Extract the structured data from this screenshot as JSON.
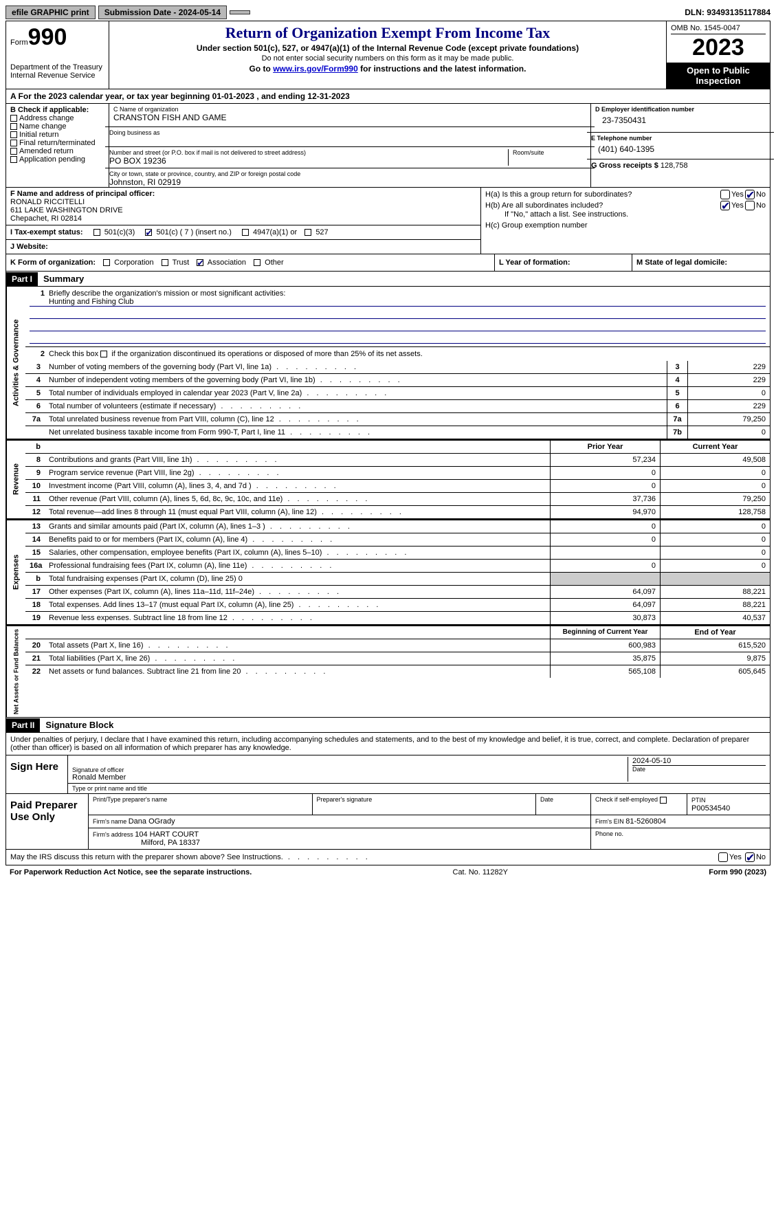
{
  "topbar": {
    "efile_label": "efile GRAPHIC print",
    "submission_label": "Submission Date - 2024-05-14",
    "dln_label": "DLN: 93493135117884"
  },
  "header": {
    "form_label": "Form",
    "form_number": "990",
    "dept": "Department of the Treasury",
    "irs": "Internal Revenue Service",
    "title": "Return of Organization Exempt From Income Tax",
    "subtitle": "Under section 501(c), 527, or 4947(a)(1) of the Internal Revenue Code (except private foundations)",
    "note": "Do not enter social security numbers on this form as it may be made public.",
    "goto_prefix": "Go to ",
    "goto_link": "www.irs.gov/Form990",
    "goto_suffix": " for instructions and the latest information.",
    "omb": "OMB No. 1545-0047",
    "year": "2023",
    "open_public": "Open to Public Inspection"
  },
  "row_a": {
    "prefix": "A For the 2023 calendar year, or tax year beginning ",
    "begin": "01-01-2023",
    "mid": "  , and ending ",
    "end": "12-31-2023"
  },
  "col_b": {
    "label": "B Check if applicable:",
    "items": [
      "Address change",
      "Name change",
      "Initial return",
      "Final return/terminated",
      "Amended return",
      "Application pending"
    ]
  },
  "col_c": {
    "name_label": "C Name of organization",
    "name": "CRANSTON FISH AND GAME",
    "dba_label": "Doing business as",
    "addr_label": "Number and street (or P.O. box if mail is not delivered to street address)",
    "addr": "PO BOX 19236",
    "room_label": "Room/suite",
    "city_label": "City or town, state or province, country, and ZIP or foreign postal code",
    "city": "Johnston, RI  02919"
  },
  "col_d": {
    "ein_label": "D Employer identification number",
    "ein": "23-7350431",
    "tel_label": "E Telephone number",
    "tel": "(401) 640-1395",
    "gross_label": "G Gross receipts $ ",
    "gross": "128,758"
  },
  "row_f": {
    "label": "F  Name and address of principal officer:",
    "name": "RONALD RICCITELLI",
    "addr1": "611 LAKE WASHINGTON DRIVE",
    "addr2": "Chepachet, RI  02814"
  },
  "row_h": {
    "ha_label": "H(a)  Is this a group return for subordinates?",
    "hb_label": "H(b)  Are all subordinates included?",
    "hb_note": "If \"No,\" attach a list. See instructions.",
    "hc_label": "H(c)  Group exemption number",
    "yes": "Yes",
    "no": "No"
  },
  "row_i": {
    "label": "I  Tax-exempt status:",
    "opts": [
      "501(c)(3)",
      "501(c) ( 7 ) (insert no.)",
      "4947(a)(1) or",
      "527"
    ]
  },
  "row_j": {
    "label": "J  Website:"
  },
  "row_k": {
    "label": "K Form of organization:",
    "opts": [
      "Corporation",
      "Trust",
      "Association",
      "Other"
    ],
    "l_label": "L Year of formation:",
    "m_label": "M State of legal domicile:"
  },
  "parts": {
    "p1": "Part I",
    "p1_title": "Summary",
    "p2": "Part II",
    "p2_title": "Signature Block"
  },
  "sides": {
    "ag": "Activities & Governance",
    "rev": "Revenue",
    "exp": "Expenses",
    "na": "Net Assets or Fund Balances"
  },
  "summary": {
    "l1_label": "Briefly describe the organization's mission or most significant activities:",
    "l1_value": "Hunting and Fishing Club",
    "l2_label": "Check this box ",
    "l2_suffix": " if the organization discontinued its operations or disposed of more than 25% of its net assets.",
    "rows_gov": [
      {
        "n": "3",
        "t": "Number of voting members of the governing body (Part VI, line 1a)",
        "b": "3",
        "v": "229"
      },
      {
        "n": "4",
        "t": "Number of independent voting members of the governing body (Part VI, line 1b)",
        "b": "4",
        "v": "229"
      },
      {
        "n": "5",
        "t": "Total number of individuals employed in calendar year 2023 (Part V, line 2a)",
        "b": "5",
        "v": "0"
      },
      {
        "n": "6",
        "t": "Total number of volunteers (estimate if necessary)",
        "b": "6",
        "v": "229"
      },
      {
        "n": "7a",
        "t": "Total unrelated business revenue from Part VIII, column (C), line 12",
        "b": "7a",
        "v": "79,250"
      },
      {
        "n": "",
        "t": "Net unrelated business taxable income from Form 990-T, Part I, line 11",
        "b": "7b",
        "v": "0"
      }
    ],
    "hdr_b": "b",
    "prior": "Prior Year",
    "current": "Current Year",
    "rows_rev": [
      {
        "n": "8",
        "t": "Contributions and grants (Part VIII, line 1h)",
        "py": "57,234",
        "cy": "49,508"
      },
      {
        "n": "9",
        "t": "Program service revenue (Part VIII, line 2g)",
        "py": "0",
        "cy": "0"
      },
      {
        "n": "10",
        "t": "Investment income (Part VIII, column (A), lines 3, 4, and 7d )",
        "py": "0",
        "cy": "0"
      },
      {
        "n": "11",
        "t": "Other revenue (Part VIII, column (A), lines 5, 6d, 8c, 9c, 10c, and 11e)",
        "py": "37,736",
        "cy": "79,250"
      },
      {
        "n": "12",
        "t": "Total revenue—add lines 8 through 11 (must equal Part VIII, column (A), line 12)",
        "py": "94,970",
        "cy": "128,758"
      }
    ],
    "rows_exp": [
      {
        "n": "13",
        "t": "Grants and similar amounts paid (Part IX, column (A), lines 1–3 )",
        "py": "0",
        "cy": "0"
      },
      {
        "n": "14",
        "t": "Benefits paid to or for members (Part IX, column (A), line 4)",
        "py": "0",
        "cy": "0"
      },
      {
        "n": "15",
        "t": "Salaries, other compensation, employee benefits (Part IX, column (A), lines 5–10)",
        "py": "",
        "cy": "0"
      },
      {
        "n": "16a",
        "t": "Professional fundraising fees (Part IX, column (A), line 11e)",
        "py": "0",
        "cy": "0"
      },
      {
        "n": "b",
        "t": "Total fundraising expenses (Part IX, column (D), line 25) 0",
        "py": "SHADE",
        "cy": "SHADE"
      },
      {
        "n": "17",
        "t": "Other expenses (Part IX, column (A), lines 11a–11d, 11f–24e)",
        "py": "64,097",
        "cy": "88,221"
      },
      {
        "n": "18",
        "t": "Total expenses. Add lines 13–17 (must equal Part IX, column (A), line 25)",
        "py": "64,097",
        "cy": "88,221"
      },
      {
        "n": "19",
        "t": "Revenue less expenses. Subtract line 18 from line 12",
        "py": "30,873",
        "cy": "40,537"
      }
    ],
    "na_hdr_py": "Beginning of Current Year",
    "na_hdr_cy": "End of Year",
    "rows_na": [
      {
        "n": "20",
        "t": "Total assets (Part X, line 16)",
        "py": "600,983",
        "cy": "615,520"
      },
      {
        "n": "21",
        "t": "Total liabilities (Part X, line 26)",
        "py": "35,875",
        "cy": "9,875"
      },
      {
        "n": "22",
        "t": "Net assets or fund balances. Subtract line 21 from line 20",
        "py": "565,108",
        "cy": "605,645"
      }
    ]
  },
  "sig": {
    "intro": "Under penalties of perjury, I declare that I have examined this return, including accompanying schedules and statements, and to the best of my knowledge and belief, it is true, correct, and complete. Declaration of preparer (other than officer) is based on all information of which preparer has any knowledge.",
    "sign_here": "Sign Here",
    "sig_officer_label": "Signature of officer",
    "sig_officer": "Ronald Member",
    "date_label": "Date",
    "date_val": "2024-05-10",
    "type_label": "Type or print name and title",
    "paid": "Paid Preparer Use Only",
    "prep_name_label": "Print/Type preparer's name",
    "prep_sig_label": "Preparer's signature",
    "prep_date_label": "Date",
    "self_emp_label": "Check          if self-employed",
    "ptin_label": "PTIN",
    "ptin": "P00534540",
    "firm_name_label": "Firm's name   ",
    "firm_name": "Dana OGrady",
    "firm_ein_label": "Firm's EIN  ",
    "firm_ein": "81-5260804",
    "firm_addr_label": "Firm's address ",
    "firm_addr1": "104 HART COURT",
    "firm_addr2": "Milford, PA  18337",
    "phone_label": "Phone no."
  },
  "discuss": {
    "text": "May the IRS discuss this return with the preparer shown above? See Instructions.",
    "yes": "Yes",
    "no": "No"
  },
  "footer": {
    "left": "For Paperwork Reduction Act Notice, see the separate instructions.",
    "mid": "Cat. No. 11282Y",
    "right": "Form 990 (2023)"
  }
}
